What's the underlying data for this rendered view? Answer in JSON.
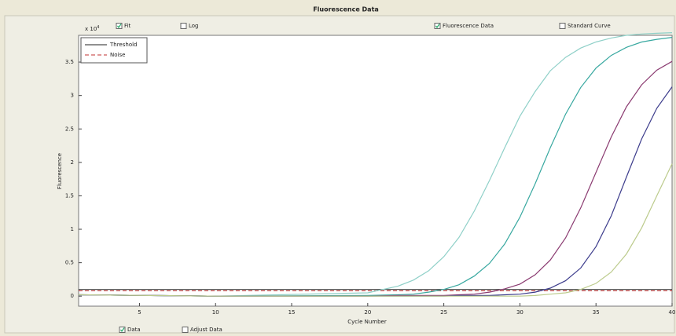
{
  "chart_data": {
    "type": "line",
    "title": "Fluorescence Data",
    "toolbar": [
      {
        "label": "Fit",
        "checked": true
      },
      {
        "label": "Log",
        "checked": false
      },
      {
        "label": "Fluorescence Data",
        "checked": true
      },
      {
        "label": "Standard Curve",
        "checked": false
      }
    ],
    "footer": [
      {
        "label": "Data",
        "checked": true
      },
      {
        "label": "Adjust Data",
        "checked": false
      }
    ],
    "y_multiplier": {
      "base": "x 10",
      "exponent": "4"
    },
    "x_label": "Cycle Number",
    "y_label": "Fluorescence",
    "xlim": [
      1,
      40
    ],
    "ylim": [
      -0.15,
      3.9
    ],
    "xticks": [
      5,
      10,
      15,
      20,
      25,
      30,
      35,
      40
    ],
    "yticks": [
      0,
      0.5,
      1,
      1.5,
      2,
      2.5,
      3,
      3.5
    ],
    "x": [
      1,
      10,
      20,
      22,
      23,
      24,
      25,
      26,
      27,
      28,
      29,
      30,
      31,
      32,
      33,
      34,
      35,
      36,
      37,
      38,
      39,
      40
    ],
    "series": [
      {
        "color": "#8fd0c8",
        "values": [
          0.02,
          0,
          0.05,
          0.15,
          0.24,
          0.38,
          0.59,
          0.88,
          1.27,
          1.73,
          2.22,
          2.69,
          3.06,
          3.37,
          3.57,
          3.71,
          3.8,
          3.86,
          3.9,
          3.92,
          3.93,
          3.94
        ]
      },
      {
        "color": "#38a8a0",
        "values": [
          0.02,
          0,
          0.01,
          0.02,
          0.03,
          0.06,
          0.1,
          0.17,
          0.3,
          0.49,
          0.78,
          1.18,
          1.68,
          2.22,
          2.72,
          3.12,
          3.41,
          3.6,
          3.72,
          3.8,
          3.84,
          3.87
        ]
      },
      {
        "color": "#8a3a70",
        "values": [
          0.02,
          0,
          0,
          0.01,
          0.01,
          0.01,
          0.01,
          0.02,
          0.03,
          0.06,
          0.11,
          0.18,
          0.32,
          0.54,
          0.87,
          1.32,
          1.85,
          2.38,
          2.83,
          3.16,
          3.38,
          3.51
        ]
      },
      {
        "color": "#3c3c8c",
        "values": [
          0.02,
          0,
          0,
          0,
          0,
          0,
          0,
          0.01,
          0.01,
          0.01,
          0.02,
          0.03,
          0.06,
          0.12,
          0.23,
          0.42,
          0.74,
          1.2,
          1.78,
          2.35,
          2.81,
          3.13
        ]
      },
      {
        "color": "#bccb8c",
        "values": [
          0.02,
          0,
          0,
          0,
          0,
          0,
          0,
          0,
          0,
          0,
          0,
          0,
          0.01,
          0.03,
          0.05,
          0.1,
          0.19,
          0.36,
          0.63,
          1.02,
          1.5,
          1.98
        ]
      }
    ],
    "lines": [
      {
        "name": "Threshold",
        "value": 0.1,
        "color": "#222222",
        "dashed": false
      },
      {
        "name": "Noise",
        "value": 0.08,
        "color": "#c03030",
        "dashed": true
      }
    ],
    "grid": false
  }
}
